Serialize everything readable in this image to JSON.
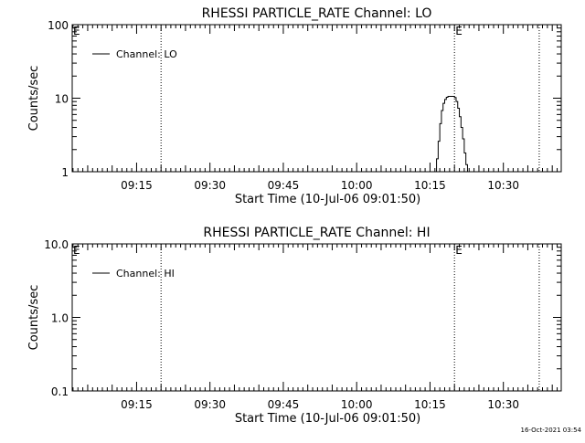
{
  "footer": {
    "timestamp": "16-Oct-2021 03:54"
  },
  "chart_data": [
    {
      "type": "line",
      "title": "RHESSI PARTICLE_RATE Channel: LO",
      "xlabel": "Start Time (10-Jul-06 09:01:50)",
      "ylabel": "Counts/sec",
      "yscale": "log",
      "ylim": [
        1,
        100
      ],
      "xlim": [
        "09:01:50",
        "10:41:50"
      ],
      "xticks": [
        "09:15",
        "09:30",
        "09:45",
        "10:00",
        "10:15",
        "10:30"
      ],
      "yticks": [
        "1",
        "10",
        "100"
      ],
      "legend": {
        "position": "top-left",
        "entries": [
          "Channel: LO"
        ]
      },
      "vertical_lines": [
        {
          "x": "09:20:00",
          "style": "dotted",
          "label": ""
        },
        {
          "x": "10:20:00",
          "style": "dotted",
          "label": "E"
        },
        {
          "x": "10:37:20",
          "style": "dotted",
          "label": ""
        }
      ],
      "edge_marks": [
        "E"
      ],
      "series": [
        {
          "name": "Channel: LO",
          "x": [
            "10:16:00",
            "10:16:20",
            "10:16:40",
            "10:17:00",
            "10:17:20",
            "10:17:40",
            "10:18:00",
            "10:18:20",
            "10:18:40",
            "10:19:00",
            "10:19:20",
            "10:19:40",
            "10:20:00",
            "10:20:20",
            "10:20:40",
            "10:21:00",
            "10:21:20",
            "10:21:40",
            "10:22:00",
            "10:22:20",
            "10:22:40",
            "10:23:00"
          ],
          "y": [
            1,
            1.5,
            2.6,
            4.5,
            6.8,
            8.5,
            9.6,
            10.3,
            10.6,
            10.6,
            10.6,
            10.6,
            10.2,
            9.0,
            7.3,
            5.6,
            4.0,
            2.8,
            1.8,
            1.25,
            1.0,
            1.0
          ]
        }
      ]
    },
    {
      "type": "line",
      "title": "RHESSI PARTICLE_RATE Channel: HI",
      "xlabel": "Start Time (10-Jul-06 09:01:50)",
      "ylabel": "Counts/sec",
      "yscale": "log",
      "ylim": [
        0.1,
        10
      ],
      "xlim": [
        "09:01:50",
        "10:41:50"
      ],
      "xticks": [
        "09:15",
        "09:30",
        "09:45",
        "10:00",
        "10:15",
        "10:30"
      ],
      "yticks": [
        "0.1",
        "1.0",
        "10.0"
      ],
      "legend": {
        "position": "top-left",
        "entries": [
          "Channel: HI"
        ]
      },
      "vertical_lines": [
        {
          "x": "09:20:00",
          "style": "dotted",
          "label": ""
        },
        {
          "x": "10:20:00",
          "style": "dotted",
          "label": "E"
        },
        {
          "x": "10:37:20",
          "style": "dotted",
          "label": ""
        }
      ],
      "edge_marks": [
        "E"
      ],
      "series": [
        {
          "name": "Channel: HI",
          "x": [],
          "y": []
        }
      ]
    }
  ]
}
